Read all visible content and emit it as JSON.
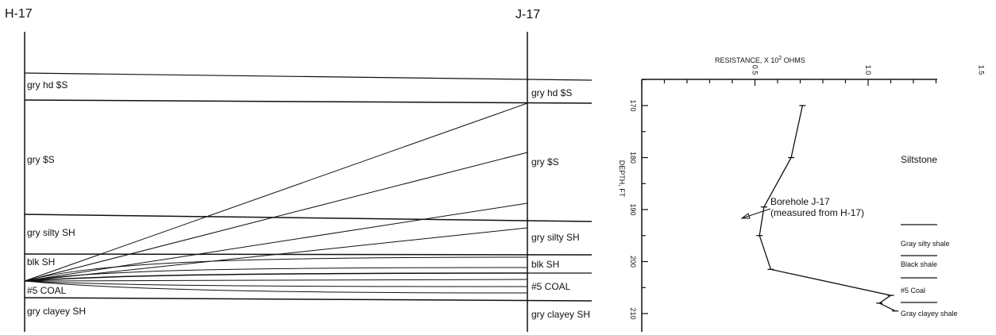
{
  "cross_section": {
    "left_well": "H-17",
    "right_well": "J-17",
    "left_units": [
      "gry hd $S",
      "gry $S",
      "gry silty SH",
      "blk SH",
      "#5 COAL",
      "gry clayey SH"
    ],
    "right_units": [
      "gry hd $S",
      "gry $S",
      "gry silty SH",
      "blk SH",
      "#5 COAL",
      "gry clayey SH"
    ]
  },
  "chart_data": {
    "type": "line",
    "xlabel_prefix": "RESISTANCE, X 10",
    "xlabel_exp": "2",
    "xlabel_suffix": " OHMS",
    "ylabel": "DEPTH, FT",
    "x_ticks": [
      "0.5",
      "1.0",
      "1.5"
    ],
    "y_ticks": [
      "170",
      "180",
      "190",
      "200",
      "210"
    ],
    "xlim": [
      0,
      1.6
    ],
    "ylim": [
      165,
      215
    ],
    "series": [
      {
        "points": [
          [
            0.71,
            170
          ],
          [
            0.66,
            180
          ],
          [
            0.54,
            189.5
          ],
          [
            0.52,
            195
          ],
          [
            0.57,
            201.5
          ],
          [
            1.1,
            206.5
          ],
          [
            1.05,
            208
          ],
          [
            1.12,
            209.5
          ]
        ]
      }
    ],
    "annotation": [
      "Borehole J-17",
      "(measured from H-17)"
    ],
    "legend_labels": [
      "Siltstone",
      "Gray silty shale",
      "Black shale",
      "#5 Coal",
      "Gray clayey shale"
    ]
  }
}
